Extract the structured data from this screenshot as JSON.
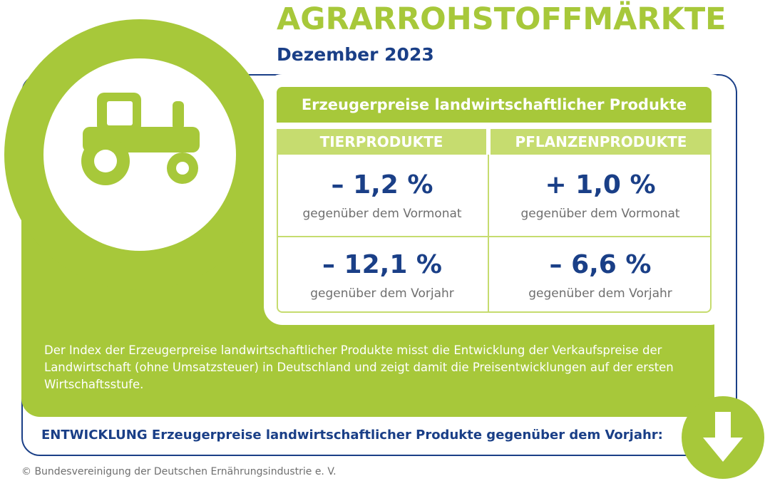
{
  "header": {
    "title": "AGRARROHSTOFFMÄRKTE",
    "subtitle": "Dezember 2023"
  },
  "icon": {
    "main": "tractor-icon",
    "trend": "arrow-down-icon"
  },
  "colors": {
    "green": "#a7c83a",
    "light_green": "#c6dc6f",
    "navy": "#1a3f87",
    "gray": "#6f6f6f"
  },
  "table": {
    "title": "Erzeugerpreise landwirtschaftlicher Produkte",
    "columns": [
      "TIERPRODUKTE",
      "PFLANZENPRODUKTE"
    ],
    "rows": [
      {
        "cells": [
          {
            "value": "– 1,2 %",
            "label": "gegenüber dem Vormonat"
          },
          {
            "value": "+ 1,0 %",
            "label": "gegenüber dem Vormonat"
          }
        ]
      },
      {
        "cells": [
          {
            "value": "– 12,1 %",
            "label": "gegenüber dem Vorjahr"
          },
          {
            "value": "– 6,6 %",
            "label": "gegenüber dem Vorjahr"
          }
        ]
      }
    ]
  },
  "description": "Der Index der Erzeugerpreise landwirtschaftlicher Produkte misst die Entwicklung der Verkaufspreise der Landwirtschaft (ohne Umsatzsteuer) in Deutschland und zeigt damit die Preisentwicklungen auf der ersten Wirtschaftsstufe.",
  "development": "ENTWICKLUNG Erzeugerpreise landwirtschaftlicher Produkte gegenüber dem Vorjahr:",
  "footer": "© Bundesvereinigung der Deutschen Ernährungsindustrie e. V."
}
